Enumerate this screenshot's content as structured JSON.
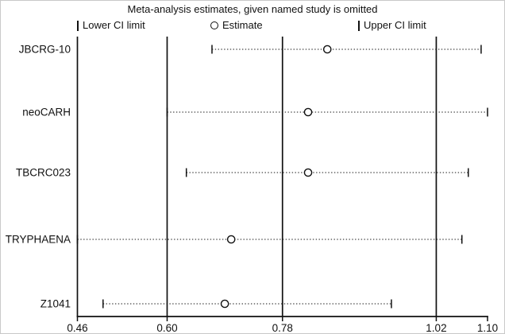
{
  "title": "Meta-analysis estimates, given named study is omitted",
  "legend": {
    "items": [
      {
        "marker": "I",
        "label": "Lower CI limit"
      },
      {
        "marker": "O",
        "label": "Estimate"
      },
      {
        "marker": "I",
        "label": "Upper CI limit"
      }
    ]
  },
  "chart_data": {
    "type": "scatter",
    "subtype": "leave-one-out meta-analysis sensitivity (forest) plot",
    "title": "Meta-analysis estimates, given named study is omitted",
    "categories": [
      "JBCRG-10",
      "neoCARH",
      "TBCRC023",
      "TRYPHAENA",
      "Z1041"
    ],
    "series": [
      {
        "name": "Lower CI limit",
        "marker": "I",
        "values": [
          0.67,
          0.6,
          0.63,
          0.46,
          0.5
        ]
      },
      {
        "name": "Estimate",
        "marker": "O",
        "values": [
          0.85,
          0.82,
          0.82,
          0.7,
          0.69
        ]
      },
      {
        "name": "Upper CI limit",
        "marker": "I",
        "values": [
          1.09,
          1.1,
          1.07,
          1.06,
          0.95
        ]
      }
    ],
    "overall_reference_lines": {
      "lower": 0.6,
      "estimate": 0.78,
      "upper": 1.02
    },
    "xlim": [
      0.46,
      1.1
    ],
    "x_ticks": [
      0.46,
      0.6,
      0.78,
      1.02,
      1.1
    ],
    "x_tick_labels": [
      "0.46",
      "0.60",
      "0.78",
      "1.02",
      "1.10"
    ],
    "grid": false,
    "legend_position": "top",
    "colors": {
      "foreground": "#111111",
      "background": "#ffffff"
    }
  }
}
